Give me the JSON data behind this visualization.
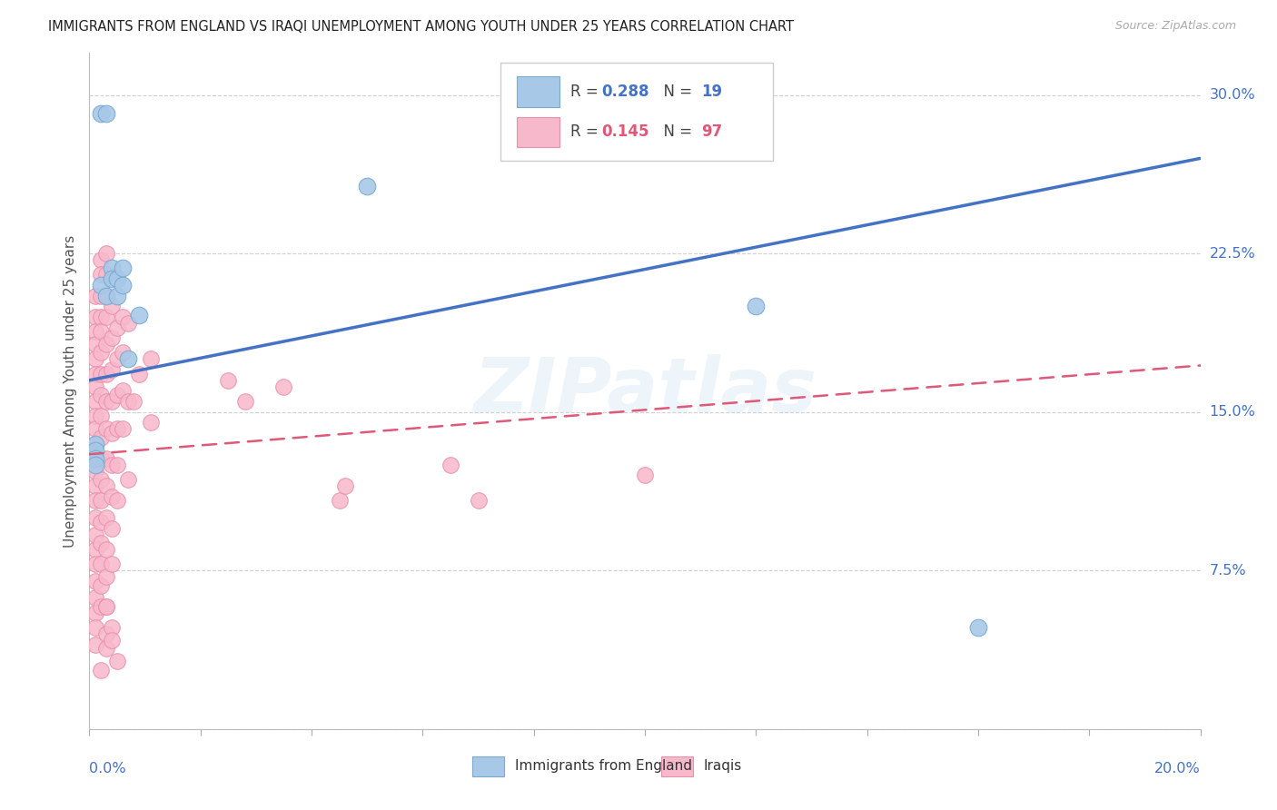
{
  "title": "IMMIGRANTS FROM ENGLAND VS IRAQI UNEMPLOYMENT AMONG YOUTH UNDER 25 YEARS CORRELATION CHART",
  "source": "Source: ZipAtlas.com",
  "ylabel": "Unemployment Among Youth under 25 years",
  "xlim": [
    0.0,
    0.2
  ],
  "ylim": [
    0.0,
    0.32
  ],
  "yticks": [
    0.0,
    0.075,
    0.15,
    0.225,
    0.3
  ],
  "ytick_labels": [
    "",
    "7.5%",
    "15.0%",
    "22.5%",
    "30.0%"
  ],
  "xtick_left": "0.0%",
  "xtick_right": "20.0%",
  "legend_R1": "0.288",
  "legend_N1": "19",
  "legend_R2": "0.145",
  "legend_N2": "97",
  "legend_label1": "Immigrants from England",
  "legend_label2": "Iraqis",
  "watermark": "ZIPatlas",
  "blue_scatter_color": "#a8c8e8",
  "blue_scatter_edge": "#7aaad0",
  "pink_scatter_color": "#f8b8cc",
  "pink_scatter_edge": "#e890a8",
  "blue_line_color": "#4472c4",
  "pink_line_color": "#e05878",
  "axis_color": "#4472c4",
  "bg_color": "#ffffff",
  "grid_color": "#cccccc",
  "title_color": "#222222",
  "source_color": "#aaaaaa",
  "ylabel_color": "#555555",
  "blue_scatter": [
    [
      0.002,
      0.291
    ],
    [
      0.003,
      0.291
    ],
    [
      0.002,
      0.21
    ],
    [
      0.003,
      0.205
    ],
    [
      0.004,
      0.218
    ],
    [
      0.004,
      0.213
    ],
    [
      0.005,
      0.213
    ],
    [
      0.005,
      0.205
    ],
    [
      0.006,
      0.218
    ],
    [
      0.006,
      0.21
    ],
    [
      0.007,
      0.175
    ],
    [
      0.001,
      0.135
    ],
    [
      0.001,
      0.132
    ],
    [
      0.001,
      0.128
    ],
    [
      0.001,
      0.125
    ],
    [
      0.05,
      0.257
    ],
    [
      0.12,
      0.2
    ],
    [
      0.16,
      0.048
    ],
    [
      0.009,
      0.196
    ]
  ],
  "pink_scatter": [
    [
      0.001,
      0.205
    ],
    [
      0.001,
      0.195
    ],
    [
      0.001,
      0.188
    ],
    [
      0.001,
      0.182
    ],
    [
      0.001,
      0.175
    ],
    [
      0.001,
      0.168
    ],
    [
      0.001,
      0.162
    ],
    [
      0.001,
      0.155
    ],
    [
      0.001,
      0.148
    ],
    [
      0.001,
      0.142
    ],
    [
      0.001,
      0.135
    ],
    [
      0.001,
      0.128
    ],
    [
      0.001,
      0.122
    ],
    [
      0.001,
      0.115
    ],
    [
      0.001,
      0.108
    ],
    [
      0.001,
      0.1
    ],
    [
      0.001,
      0.092
    ],
    [
      0.001,
      0.085
    ],
    [
      0.001,
      0.078
    ],
    [
      0.001,
      0.07
    ],
    [
      0.001,
      0.062
    ],
    [
      0.001,
      0.055
    ],
    [
      0.001,
      0.048
    ],
    [
      0.001,
      0.04
    ],
    [
      0.002,
      0.222
    ],
    [
      0.002,
      0.215
    ],
    [
      0.002,
      0.205
    ],
    [
      0.002,
      0.195
    ],
    [
      0.002,
      0.188
    ],
    [
      0.002,
      0.178
    ],
    [
      0.002,
      0.168
    ],
    [
      0.002,
      0.158
    ],
    [
      0.002,
      0.148
    ],
    [
      0.002,
      0.138
    ],
    [
      0.002,
      0.128
    ],
    [
      0.002,
      0.118
    ],
    [
      0.002,
      0.108
    ],
    [
      0.002,
      0.098
    ],
    [
      0.002,
      0.088
    ],
    [
      0.002,
      0.078
    ],
    [
      0.002,
      0.068
    ],
    [
      0.002,
      0.058
    ],
    [
      0.003,
      0.225
    ],
    [
      0.003,
      0.215
    ],
    [
      0.003,
      0.205
    ],
    [
      0.003,
      0.195
    ],
    [
      0.003,
      0.182
    ],
    [
      0.003,
      0.168
    ],
    [
      0.003,
      0.155
    ],
    [
      0.003,
      0.142
    ],
    [
      0.003,
      0.128
    ],
    [
      0.003,
      0.115
    ],
    [
      0.003,
      0.1
    ],
    [
      0.003,
      0.085
    ],
    [
      0.003,
      0.072
    ],
    [
      0.003,
      0.058
    ],
    [
      0.003,
      0.045
    ],
    [
      0.004,
      0.2
    ],
    [
      0.004,
      0.185
    ],
    [
      0.004,
      0.17
    ],
    [
      0.004,
      0.155
    ],
    [
      0.004,
      0.14
    ],
    [
      0.004,
      0.125
    ],
    [
      0.004,
      0.11
    ],
    [
      0.004,
      0.095
    ],
    [
      0.004,
      0.078
    ],
    [
      0.004,
      0.048
    ],
    [
      0.005,
      0.19
    ],
    [
      0.005,
      0.175
    ],
    [
      0.005,
      0.158
    ],
    [
      0.005,
      0.142
    ],
    [
      0.005,
      0.125
    ],
    [
      0.005,
      0.108
    ],
    [
      0.006,
      0.195
    ],
    [
      0.006,
      0.178
    ],
    [
      0.006,
      0.16
    ],
    [
      0.006,
      0.142
    ],
    [
      0.007,
      0.192
    ],
    [
      0.007,
      0.155
    ],
    [
      0.007,
      0.118
    ],
    [
      0.008,
      0.155
    ],
    [
      0.009,
      0.168
    ],
    [
      0.011,
      0.175
    ],
    [
      0.011,
      0.145
    ],
    [
      0.025,
      0.165
    ],
    [
      0.028,
      0.155
    ],
    [
      0.035,
      0.162
    ],
    [
      0.045,
      0.108
    ],
    [
      0.046,
      0.115
    ],
    [
      0.065,
      0.125
    ],
    [
      0.07,
      0.108
    ],
    [
      0.1,
      0.12
    ],
    [
      0.002,
      0.028
    ],
    [
      0.003,
      0.038
    ],
    [
      0.003,
      0.058
    ],
    [
      0.004,
      0.042
    ],
    [
      0.005,
      0.032
    ]
  ],
  "blue_line": [
    0.0,
    0.165,
    0.2,
    0.27
  ],
  "pink_line": [
    0.0,
    0.13,
    0.2,
    0.172
  ]
}
